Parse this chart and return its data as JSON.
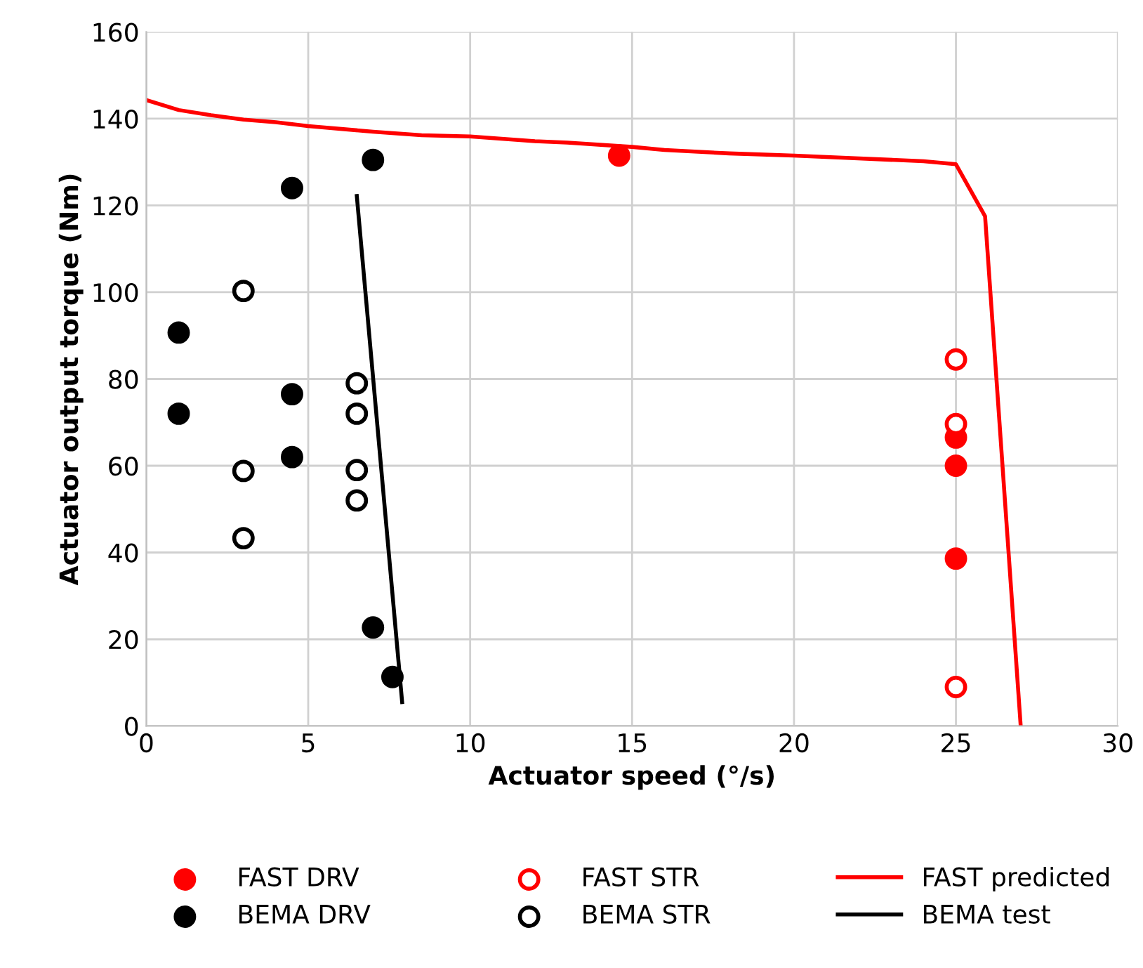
{
  "chart_data": {
    "type": "scatter",
    "xlabel": "Actuator speed (°/s)",
    "ylabel": "Actuator output torque (Nm)",
    "xlim": [
      0,
      30
    ],
    "xticks": [
      0,
      5,
      10,
      15,
      20,
      25,
      30
    ],
    "ylim": [
      0,
      160
    ],
    "yticks": [
      0,
      20,
      40,
      60,
      80,
      100,
      120,
      140,
      160
    ],
    "grid": true,
    "legend": "bottom",
    "series": [
      {
        "name": "FAST DRV",
        "marker": "circle",
        "color": "#ff0000",
        "x": [
          14.6,
          25,
          25,
          25
        ],
        "values": [
          131.5,
          66.5,
          60,
          38.6
        ]
      },
      {
        "name": "FAST STR",
        "marker": "circle",
        "color": "#ff0000",
        "colors": [
          "#ffffff",
          "#ffffff",
          "#ffffff"
        ],
        "x": [
          25,
          25,
          25
        ],
        "values": [
          84.5,
          69.6,
          9
        ]
      },
      {
        "name": "FAST predicted",
        "type": "line",
        "marker": "none",
        "color": "#ff0000",
        "x": [
          0,
          1,
          2,
          3,
          4,
          5,
          7,
          8.5,
          10,
          12,
          13,
          15,
          16,
          18,
          20,
          21.5,
          24,
          25,
          25.9,
          27
        ],
        "values": [
          144.3,
          142,
          140.8,
          139.8,
          139.2,
          138.3,
          137,
          136.2,
          135.9,
          134.8,
          134.5,
          133.5,
          132.8,
          132,
          131.5,
          131,
          130.2,
          129.5,
          117.5,
          0
        ]
      },
      {
        "name": "BEMA DRV",
        "marker": "circle",
        "color": "#000000",
        "x": [
          1,
          1,
          4.5,
          4.5,
          4.5,
          7,
          7,
          7.6
        ],
        "values": [
          90.7,
          72,
          124,
          76.5,
          62,
          130.5,
          22.7,
          11.3
        ]
      },
      {
        "name": "BEMA STR",
        "marker": "circle",
        "color": "#000000",
        "colors": [
          "#ffffff",
          "#ffffff",
          "#ffffff",
          "#ffffff",
          "#ffffff",
          "#ffffff",
          "#ffffff"
        ],
        "x": [
          3,
          3,
          3,
          6.5,
          6.5,
          6.5,
          6.5
        ],
        "values": [
          100.3,
          58.8,
          43.3,
          79,
          72,
          59,
          52
        ]
      },
      {
        "name": "BEMA test",
        "type": "line",
        "marker": "none",
        "color": "#000000",
        "x": [
          6.5,
          7.9
        ],
        "values": [
          122.2,
          5.5
        ]
      }
    ]
  }
}
